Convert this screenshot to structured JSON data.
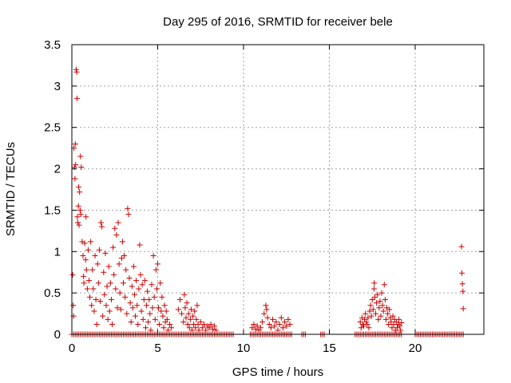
{
  "chart_data": {
    "type": "scatter",
    "title": "Day 295 of 2016, SRMTID for receiver bele",
    "xlabel": "GPS time / hours",
    "ylabel": "SRMTID / TECUs",
    "xlim": [
      0,
      24
    ],
    "ylim": [
      0,
      3.5
    ],
    "grid": true,
    "marker": "+",
    "color": "#cc0000",
    "xticks": [
      0,
      5,
      10,
      15,
      20
    ],
    "xtick_labels": [
      "0",
      "5",
      "10",
      "15",
      "20"
    ],
    "yticks": [
      0,
      0.5,
      1,
      1.5,
      2,
      2.5,
      3,
      3.5
    ],
    "ytick_labels": [
      "0",
      "0.5",
      "1",
      "1.5",
      "2",
      "2.5",
      "3",
      "3.5"
    ],
    "series": [
      {
        "name": "SRMTID",
        "points": [
          [
            0.05,
            0.72
          ],
          [
            0.08,
            0.35
          ],
          [
            0.1,
            0.22
          ],
          [
            0.12,
            2.25
          ],
          [
            0.15,
            2.02
          ],
          [
            0.18,
            1.88
          ],
          [
            0.2,
            2.3
          ],
          [
            0.22,
            2.05
          ],
          [
            0.25,
            3.2
          ],
          [
            0.28,
            3.17
          ],
          [
            0.3,
            2.85
          ],
          [
            0.32,
            1.42
          ],
          [
            0.35,
            1.35
          ],
          [
            0.38,
            1.55
          ],
          [
            0.4,
            1.78
          ],
          [
            0.42,
            1.32
          ],
          [
            0.45,
            1.72
          ],
          [
            0.48,
            1.5
          ],
          [
            0.5,
            2.15
          ],
          [
            0.52,
            1.45
          ],
          [
            0.55,
            2.02
          ],
          [
            0.6,
            1.12
          ],
          [
            0.65,
            0.95
          ],
          [
            0.68,
            0.7
          ],
          [
            0.7,
            0.62
          ],
          [
            0.75,
            1.1
          ],
          [
            0.8,
            0.9
          ],
          [
            0.82,
            1.42
          ],
          [
            0.85,
            0.78
          ],
          [
            0.9,
            0.55
          ],
          [
            0.95,
            1.02
          ],
          [
            1.0,
            0.65
          ],
          [
            1.05,
            0.45
          ],
          [
            1.1,
            1.12
          ],
          [
            1.15,
            0.35
          ],
          [
            1.2,
            0.78
          ],
          [
            1.25,
            0.55
          ],
          [
            1.3,
            0.28
          ],
          [
            1.35,
            0.95
          ],
          [
            1.4,
            0.42
          ],
          [
            1.45,
            0.12
          ],
          [
            1.5,
            0.85
          ],
          [
            1.55,
            0.62
          ],
          [
            1.6,
            1.02
          ],
          [
            1.65,
            0.4
          ],
          [
            1.7,
            1.35
          ],
          [
            1.75,
            1.3
          ],
          [
            1.8,
            0.22
          ],
          [
            1.85,
            0.75
          ],
          [
            1.9,
            0.48
          ],
          [
            1.95,
            0.98
          ],
          [
            2.0,
            0.35
          ],
          [
            2.05,
            0.58
          ],
          [
            2.1,
            0.18
          ],
          [
            2.15,
            0.82
          ],
          [
            2.2,
            0.28
          ],
          [
            2.25,
            0.62
          ],
          [
            2.3,
            0.42
          ],
          [
            2.35,
            0.12
          ],
          [
            2.4,
            1.05
          ],
          [
            2.45,
            0.72
          ],
          [
            2.5,
            1.28
          ],
          [
            2.55,
            0.55
          ],
          [
            2.6,
            1.2
          ],
          [
            2.65,
            0.32
          ],
          [
            2.7,
            1.35
          ],
          [
            2.75,
            0.85
          ],
          [
            2.8,
            0.5
          ],
          [
            2.85,
            0.3
          ],
          [
            2.9,
            0.92
          ],
          [
            2.95,
            1.12
          ],
          [
            3.0,
            0.62
          ],
          [
            3.05,
            0.95
          ],
          [
            3.1,
            0.45
          ],
          [
            3.15,
            0.78
          ],
          [
            3.2,
            0.25
          ],
          [
            3.25,
            1.52
          ],
          [
            3.3,
            1.45
          ],
          [
            3.35,
            0.68
          ],
          [
            3.4,
            0.38
          ],
          [
            3.45,
            0.15
          ],
          [
            3.5,
            0.58
          ],
          [
            3.55,
            0.32
          ],
          [
            3.6,
            0.82
          ],
          [
            3.65,
            0.48
          ],
          [
            3.7,
            0.22
          ],
          [
            3.75,
            0.65
          ],
          [
            3.8,
            0.35
          ],
          [
            3.85,
            0.12
          ],
          [
            3.9,
            0.55
          ],
          [
            3.95,
            1.08
          ],
          [
            4.0,
            0.72
          ],
          [
            4.05,
            0.28
          ],
          [
            4.1,
            0.6
          ],
          [
            4.15,
            0.18
          ],
          [
            4.2,
            0.42
          ],
          [
            4.25,
            0.65
          ],
          [
            4.3,
            0.08
          ],
          [
            4.35,
            0.35
          ],
          [
            4.4,
            0.52
          ],
          [
            4.45,
            0.15
          ],
          [
            4.5,
            0.42
          ],
          [
            4.55,
            0.25
          ],
          [
            4.6,
            0.05
          ],
          [
            4.65,
            0.6
          ],
          [
            4.7,
            0.32
          ],
          [
            4.75,
            0.95
          ],
          [
            4.8,
            0.45
          ],
          [
            4.85,
            0.18
          ],
          [
            4.9,
            0.78
          ],
          [
            4.95,
            0.55
          ],
          [
            5.0,
            0.85
          ],
          [
            5.05,
            0.32
          ],
          [
            5.1,
            0.12
          ],
          [
            5.15,
            0.62
          ],
          [
            5.2,
            0.28
          ],
          [
            5.25,
            0.45
          ],
          [
            5.3,
            0.22
          ],
          [
            5.35,
            0.08
          ],
          [
            5.4,
            0.35
          ],
          [
            5.45,
            0.15
          ],
          [
            5.5,
            0.28
          ],
          [
            5.55,
            0.18
          ],
          [
            5.6,
            0.05
          ],
          [
            5.7,
            0.12
          ],
          [
            5.8,
            0.08
          ],
          [
            6.2,
            0.3
          ],
          [
            6.3,
            0.42
          ],
          [
            6.4,
            0.25
          ],
          [
            6.5,
            0.15
          ],
          [
            6.55,
            0.48
          ],
          [
            6.6,
            0.32
          ],
          [
            6.65,
            0.2
          ],
          [
            6.7,
            0.38
          ],
          [
            6.75,
            0.12
          ],
          [
            6.8,
            0.25
          ],
          [
            6.85,
            0.08
          ],
          [
            6.9,
            0.18
          ],
          [
            6.95,
            0.3
          ],
          [
            7.0,
            0.05
          ],
          [
            7.05,
            0.22
          ],
          [
            7.1,
            0.12
          ],
          [
            7.15,
            0.28
          ],
          [
            7.2,
            0.08
          ],
          [
            7.25,
            0.18
          ],
          [
            7.3,
            0.35
          ],
          [
            7.35,
            0.12
          ],
          [
            7.4,
            0.05
          ],
          [
            7.5,
            0.15
          ],
          [
            7.6,
            0.08
          ],
          [
            7.7,
            0.12
          ],
          [
            7.8,
            0.05
          ],
          [
            7.9,
            0.1
          ],
          [
            8.0,
            0.08
          ],
          [
            8.1,
            0.12
          ],
          [
            8.2,
            0.06
          ],
          [
            8.3,
            0.1
          ],
          [
            8.4,
            0.05
          ],
          [
            10.5,
            0.08
          ],
          [
            10.6,
            0.12
          ],
          [
            10.7,
            0.06
          ],
          [
            10.8,
            0.1
          ],
          [
            10.9,
            0.05
          ],
          [
            11.0,
            0.08
          ],
          [
            11.1,
            0.15
          ],
          [
            11.2,
            0.25
          ],
          [
            11.3,
            0.35
          ],
          [
            11.35,
            0.3
          ],
          [
            11.4,
            0.2
          ],
          [
            11.5,
            0.12
          ],
          [
            11.6,
            0.08
          ],
          [
            11.7,
            0.18
          ],
          [
            11.8,
            0.1
          ],
          [
            11.9,
            0.15
          ],
          [
            12.0,
            0.05
          ],
          [
            12.1,
            0.12
          ],
          [
            12.2,
            0.2
          ],
          [
            12.3,
            0.08
          ],
          [
            12.4,
            0.15
          ],
          [
            12.5,
            0.1
          ],
          [
            12.6,
            0.18
          ],
          [
            12.7,
            0.12
          ],
          [
            16.8,
            0.15
          ],
          [
            16.85,
            0.08
          ],
          [
            16.9,
            0.2
          ],
          [
            16.95,
            0.12
          ],
          [
            17.0,
            0.1
          ],
          [
            17.05,
            0.18
          ],
          [
            17.1,
            0.25
          ],
          [
            17.15,
            0.15
          ],
          [
            17.2,
            0.12
          ],
          [
            17.25,
            0.2
          ],
          [
            17.3,
            0.08
          ],
          [
            17.35,
            0.28
          ],
          [
            17.4,
            0.35
          ],
          [
            17.45,
            0.22
          ],
          [
            17.5,
            0.42
          ],
          [
            17.55,
            0.3
          ],
          [
            17.6,
            0.55
          ],
          [
            17.62,
            0.62
          ],
          [
            17.65,
            0.45
          ],
          [
            17.7,
            0.25
          ],
          [
            17.75,
            0.38
          ],
          [
            17.8,
            0.48
          ],
          [
            17.85,
            0.18
          ],
          [
            17.9,
            0.32
          ],
          [
            17.95,
            0.4
          ],
          [
            18.0,
            0.22
          ],
          [
            18.05,
            0.5
          ],
          [
            18.1,
            0.35
          ],
          [
            18.15,
            0.28
          ],
          [
            18.2,
            0.6
          ],
          [
            18.25,
            0.42
          ],
          [
            18.3,
            0.18
          ],
          [
            18.35,
            0.32
          ],
          [
            18.4,
            0.25
          ],
          [
            18.45,
            0.12
          ],
          [
            18.5,
            0.3
          ],
          [
            18.55,
            0.2
          ],
          [
            18.6,
            0.15
          ],
          [
            18.65,
            0.08
          ],
          [
            18.7,
            0.22
          ],
          [
            18.75,
            0.12
          ],
          [
            18.8,
            0.18
          ],
          [
            18.85,
            0.05
          ],
          [
            18.9,
            0.15
          ],
          [
            18.95,
            0.08
          ],
          [
            19.0,
            0.12
          ],
          [
            19.05,
            0.18
          ],
          [
            19.1,
            0.1
          ],
          [
            19.15,
            0.05
          ],
          [
            19.2,
            0.14
          ],
          [
            22.7,
            1.06
          ],
          [
            22.72,
            0.74
          ],
          [
            22.75,
            0.61
          ],
          [
            22.78,
            0.52
          ],
          [
            22.8,
            0.31
          ]
        ],
        "zero_runs": [
          [
            0,
            9.4
          ],
          [
            10.4,
            12.8
          ],
          [
            13.4,
            13.6
          ],
          [
            14.5,
            14.7
          ],
          [
            16.5,
            19.2
          ],
          [
            20.0,
            22.8
          ]
        ]
      }
    ]
  }
}
